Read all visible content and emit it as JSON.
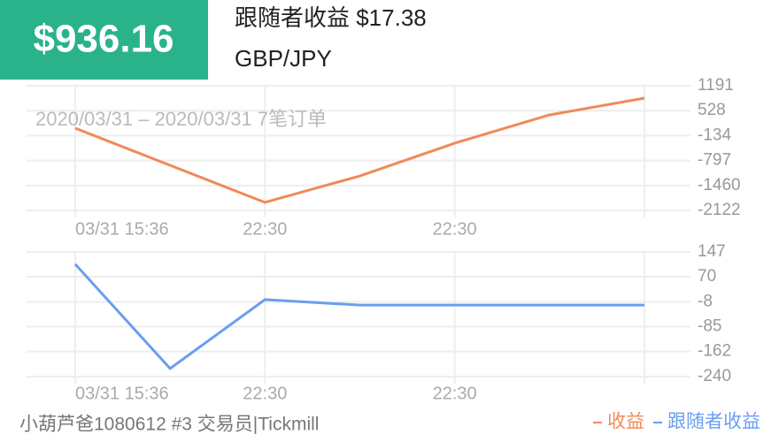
{
  "header": {
    "balance": "$936.16",
    "follower_profit": "跟随者收益 $17.38",
    "symbol": "GBP/JPY"
  },
  "chart_data": [
    {
      "type": "line",
      "subtitle": "2020/03/31 – 2020/03/31 7笔订单",
      "categories": [
        "03/31 15:36",
        null,
        "22:30",
        null,
        "22:30",
        null,
        null
      ],
      "series": [
        {
          "name": "收益",
          "color": "#f0895a",
          "values": [
            63,
            -924,
            -1910,
            -1206,
            -336,
            416,
            862
          ]
        }
      ],
      "ylim": [
        -2122,
        1191
      ],
      "yticks": [
        -2122,
        -1460,
        -797,
        -134,
        528,
        1191
      ],
      "grid": true
    },
    {
      "type": "line",
      "categories": [
        "03/31 15:36",
        null,
        "22:30",
        null,
        "22:30",
        null,
        null
      ],
      "series": [
        {
          "name": "跟随者收益",
          "color": "#6a9ef0",
          "values": [
            109,
            -215,
            -1,
            -18,
            -18,
            -18,
            -18
          ]
        }
      ],
      "ylim": [
        -240,
        147
      ],
      "yticks": [
        -240,
        -162,
        -85,
        -8,
        70,
        147
      ],
      "grid": true
    }
  ],
  "footer": "小葫芦爸1080612 #3 交易员|Tickmill"
}
